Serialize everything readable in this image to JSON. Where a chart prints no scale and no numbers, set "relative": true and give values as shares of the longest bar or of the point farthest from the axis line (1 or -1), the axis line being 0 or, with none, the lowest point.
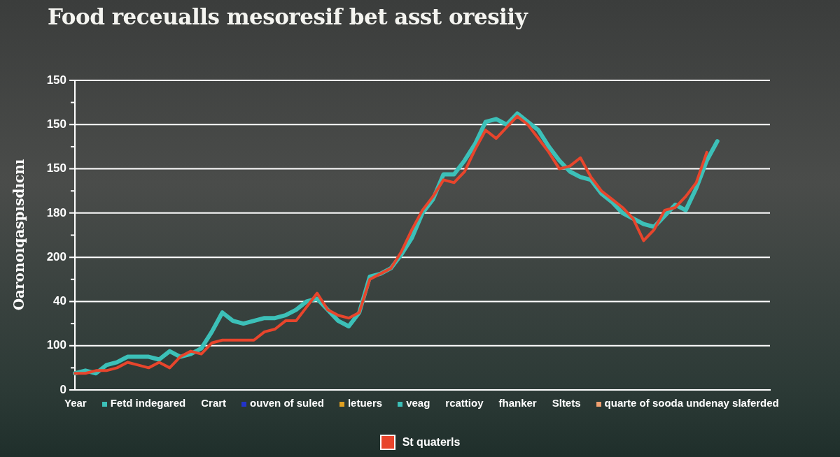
{
  "chart_data": {
    "type": "line",
    "relative": true,
    "title": "Food receualls mesoresif bet asst oresiiy",
    "xlabel": "Year",
    "ylabel": "Oaronoıqaspısdıcnı",
    "categories": [
      null,
      null,
      null,
      null,
      null,
      null,
      null,
      null,
      null,
      null,
      null,
      null,
      null,
      null,
      null,
      null,
      null,
      null,
      null,
      null,
      null,
      null,
      null,
      null,
      null,
      null,
      null,
      null,
      null,
      null,
      null,
      null,
      null,
      null,
      null,
      null,
      null,
      null,
      null,
      null,
      null,
      null,
      null,
      null,
      null,
      null,
      null,
      null,
      null,
      null,
      null,
      null,
      null,
      null,
      null,
      null,
      null,
      null,
      null,
      null,
      null,
      null,
      null,
      null,
      null,
      null,
      null
    ],
    "series": [
      {
        "name": "Fetd indegared",
        "color": "#3cc0b8",
        "values": [
          0.06,
          0.07,
          0.06,
          0.09,
          0.1,
          0.12,
          0.12,
          0.12,
          0.11,
          0.14,
          0.12,
          0.13,
          0.15,
          0.21,
          0.28,
          0.25,
          0.24,
          0.25,
          0.26,
          0.26,
          0.27,
          0.29,
          0.32,
          0.33,
          0.29,
          0.25,
          0.23,
          0.28,
          0.41,
          0.42,
          0.44,
          0.49,
          0.55,
          0.64,
          0.69,
          0.78,
          0.78,
          0.83,
          0.89,
          0.97,
          0.98,
          0.96,
          1,
          0.97,
          0.94,
          0.88,
          0.83,
          0.79,
          0.77,
          0.76,
          0.71,
          0.68,
          0.64,
          0.62,
          0.6,
          0.59,
          0.63,
          0.67,
          0.65,
          0.73,
          0.83,
          0.9,
          null,
          null,
          null,
          null,
          null
        ]
      },
      {
        "name": "St quaterls",
        "color": "#e8452c",
        "values": [
          0.06,
          0.06,
          0.07,
          0.07,
          0.08,
          0.1,
          0.09,
          0.08,
          0.1,
          0.08,
          0.12,
          0.14,
          0.13,
          0.17,
          0.18,
          0.18,
          0.18,
          0.18,
          0.21,
          0.22,
          0.25,
          0.25,
          0.3,
          0.35,
          0.29,
          0.27,
          0.26,
          0.28,
          0.4,
          0.42,
          0.44,
          0.5,
          0.58,
          0.65,
          0.7,
          0.76,
          0.75,
          0.79,
          0.87,
          0.94,
          0.91,
          0.95,
          0.99,
          0.96,
          0.91,
          0.86,
          0.8,
          0.81,
          0.84,
          0.77,
          0.72,
          0.69,
          0.66,
          0.62,
          0.54,
          0.58,
          0.65,
          0.66,
          0.7,
          0.75,
          0.86,
          null,
          null,
          null,
          null,
          null,
          null
        ]
      }
    ],
    "grid": "y",
    "legend": "bottom",
    "marker": "none",
    "line_style": "solid",
    "annotations": [
      "0",
      "100",
      "40",
      "200",
      "180",
      "150",
      "150",
      "150",
      "Crart",
      "ouven of suled",
      "letuers",
      "veag",
      "rcattioy",
      "fhanker",
      "Sltets",
      "quarte of sooda undenay slaferded"
    ]
  }
}
